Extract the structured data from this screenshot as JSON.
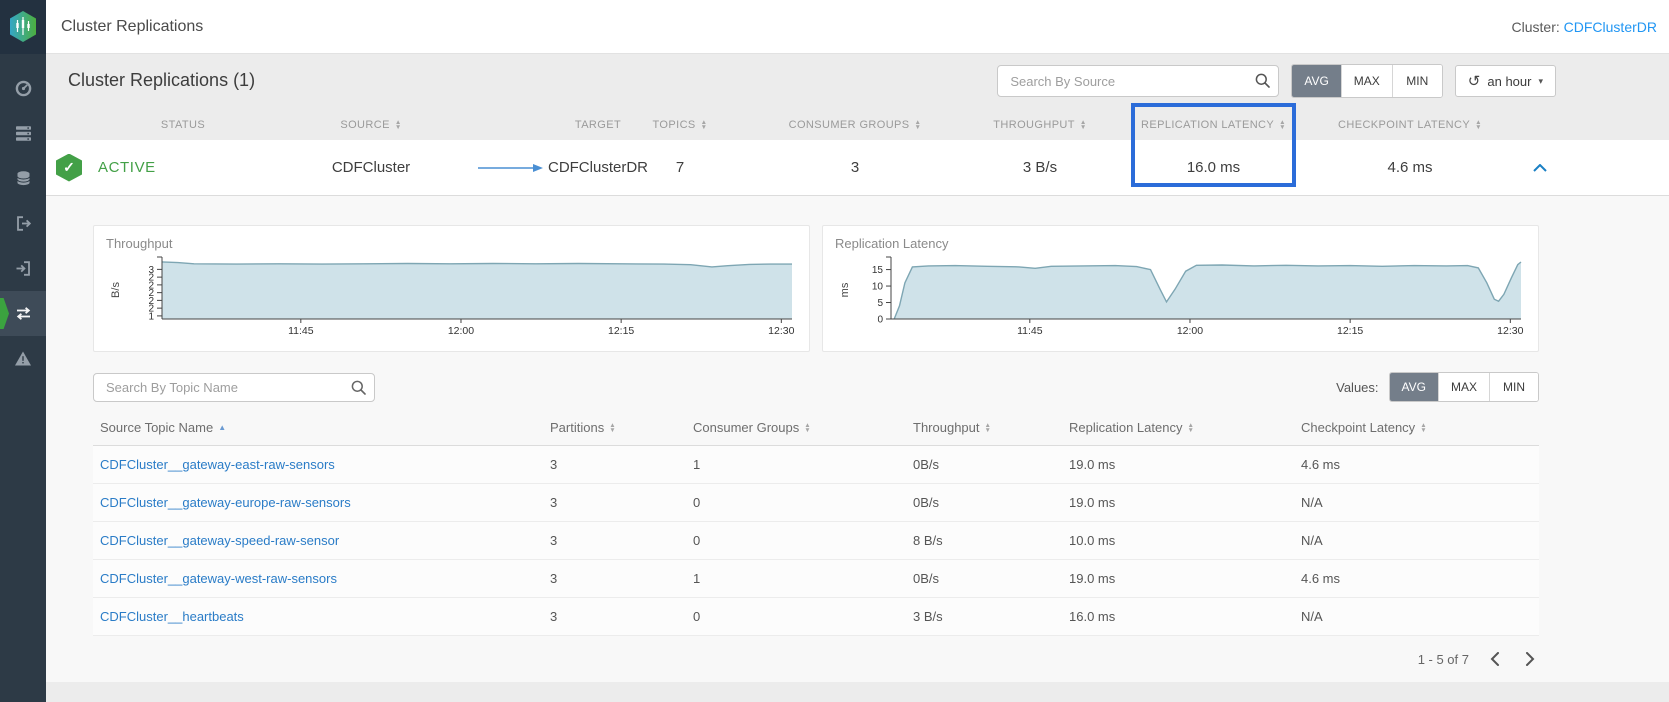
{
  "topbar": {
    "title": "Cluster Replications",
    "cluster_label": "Cluster:",
    "cluster_name": "CDFClusterDR"
  },
  "sidebar": {
    "items": [
      {
        "icon": "gauge-icon",
        "active": false
      },
      {
        "icon": "server-stack-icon",
        "active": false
      },
      {
        "icon": "database-icon",
        "active": false
      },
      {
        "icon": "arrow-out-icon",
        "active": false
      },
      {
        "icon": "arrow-in-icon",
        "active": false
      },
      {
        "icon": "swap-arrows-icon",
        "active": true
      },
      {
        "icon": "warning-triangle-icon",
        "active": false
      }
    ]
  },
  "section": {
    "title": "Cluster Replications (1)",
    "search_placeholder": "Search By Source",
    "agg_buttons": [
      "AVG",
      "MAX",
      "MIN"
    ],
    "agg_selected": "AVG",
    "time_range": "an hour"
  },
  "summary_table": {
    "columns": [
      {
        "label": "STATUS",
        "sortable": false
      },
      {
        "label": "SOURCE",
        "sortable": true
      },
      {
        "label": "TARGET",
        "sortable": false
      },
      {
        "label": "TOPICS",
        "sortable": true
      },
      {
        "label": "CONSUMER GROUPS",
        "sortable": true
      },
      {
        "label": "THROUGHPUT",
        "sortable": true
      },
      {
        "label": "REPLICATION LATENCY",
        "sortable": true,
        "highlighted": true
      },
      {
        "label": "CHECKPOINT LATENCY",
        "sortable": true
      }
    ],
    "row": {
      "status": "ACTIVE",
      "source": "CDFCluster",
      "target": "CDFClusterDR",
      "topics": "7",
      "consumer_groups": "3",
      "throughput": "3 B/s",
      "replication_latency": "16.0 ms",
      "checkpoint_latency": "4.6 ms"
    }
  },
  "chart_data": [
    {
      "type": "area",
      "title": "Throughput",
      "ylabel": "B/s",
      "x_axis": {
        "duration_min": 59,
        "ticks": [
          {
            "t": 13,
            "label": "11:45"
          },
          {
            "t": 28,
            "label": "12:00"
          },
          {
            "t": 43,
            "label": "12:15"
          },
          {
            "t": 58,
            "label": "12:30"
          }
        ]
      },
      "y_axis": {
        "lim": [
          1.15,
          3.02
        ],
        "ticks": [
          {
            "v": 1.25,
            "label": "1"
          },
          {
            "v": 1.5,
            "label": "2"
          },
          {
            "v": 1.75,
            "label": "2"
          },
          {
            "v": 2.0,
            "label": "2"
          },
          {
            "v": 2.25,
            "label": "2"
          },
          {
            "v": 2.5,
            "label": "2"
          },
          {
            "v": 2.75,
            "label": "3"
          }
        ]
      },
      "series": [
        {
          "name": "throughput_bps",
          "points": [
            [
              0,
              2.99
            ],
            [
              1.5,
              2.97
            ],
            [
              3,
              2.93
            ],
            [
              7,
              2.92
            ],
            [
              11,
              2.93
            ],
            [
              15,
              2.92
            ],
            [
              19,
              2.93
            ],
            [
              23,
              2.94
            ],
            [
              27,
              2.93
            ],
            [
              31,
              2.94
            ],
            [
              35,
              2.93
            ],
            [
              39,
              2.94
            ],
            [
              43,
              2.93
            ],
            [
              47,
              2.92
            ],
            [
              49.5,
              2.9
            ],
            [
              51.5,
              2.83
            ],
            [
              53,
              2.87
            ],
            [
              55,
              2.91
            ],
            [
              57,
              2.92
            ],
            [
              59,
              2.92
            ]
          ]
        }
      ]
    },
    {
      "type": "area",
      "title": "Replication Latency",
      "ylabel": "ms",
      "x_axis": {
        "duration_min": 59,
        "ticks": [
          {
            "t": 13,
            "label": "11:45"
          },
          {
            "t": 28,
            "label": "12:00"
          },
          {
            "t": 43,
            "label": "12:15"
          },
          {
            "t": 58,
            "label": "12:30"
          }
        ]
      },
      "y_axis": {
        "lim": [
          0,
          17.6
        ],
        "ticks": [
          {
            "v": 0,
            "label": "0"
          },
          {
            "v": 5,
            "label": "5"
          },
          {
            "v": 10,
            "label": "10"
          },
          {
            "v": 15,
            "label": "15"
          }
        ]
      },
      "series": [
        {
          "name": "replication_latency_ms",
          "points": [
            [
              0.3,
              0
            ],
            [
              0.8,
              4
            ],
            [
              1.3,
              11
            ],
            [
              2,
              15.8
            ],
            [
              3.5,
              16.1
            ],
            [
              6,
              16.2
            ],
            [
              9,
              16
            ],
            [
              12,
              15.8
            ],
            [
              13.5,
              15.4
            ],
            [
              15,
              16
            ],
            [
              18,
              16.1
            ],
            [
              21,
              16.2
            ],
            [
              23,
              15.9
            ],
            [
              24.3,
              15
            ],
            [
              25.2,
              9
            ],
            [
              25.8,
              5.2
            ],
            [
              26.6,
              9
            ],
            [
              27.6,
              14.5
            ],
            [
              28.6,
              16.3
            ],
            [
              31,
              16.4
            ],
            [
              34,
              16.1
            ],
            [
              37,
              16.3
            ],
            [
              40,
              16.1
            ],
            [
              43,
              16.2
            ],
            [
              46,
              16
            ],
            [
              49,
              16.2
            ],
            [
              52,
              16.1
            ],
            [
              54,
              16.2
            ],
            [
              55,
              15.5
            ],
            [
              55.8,
              11
            ],
            [
              56.5,
              6
            ],
            [
              56.9,
              5.4
            ],
            [
              57.4,
              7.5
            ],
            [
              58.1,
              12.5
            ],
            [
              58.7,
              16.5
            ],
            [
              59,
              17.3
            ]
          ]
        }
      ]
    }
  ],
  "topics": {
    "search_placeholder": "Search By Topic Name",
    "values_label": "Values:",
    "agg_buttons": [
      "AVG",
      "MAX",
      "MIN"
    ],
    "agg_selected": "AVG",
    "columns": [
      {
        "label": "Source Topic Name",
        "sort": "asc"
      },
      {
        "label": "Partitions",
        "sortable": true
      },
      {
        "label": "Consumer Groups",
        "sortable": true
      },
      {
        "label": "Throughput",
        "sortable": true
      },
      {
        "label": "Replication Latency",
        "sortable": true
      },
      {
        "label": "Checkpoint Latency",
        "sortable": true
      }
    ],
    "rows": [
      {
        "name": "CDFCluster__gateway-east-raw-sensors",
        "partitions": "3",
        "consumer_groups": "1",
        "throughput": "0B/s",
        "replication_latency": "19.0 ms",
        "checkpoint_latency": "4.6 ms"
      },
      {
        "name": "CDFCluster__gateway-europe-raw-sensors",
        "partitions": "3",
        "consumer_groups": "0",
        "throughput": "0B/s",
        "replication_latency": "19.0 ms",
        "checkpoint_latency": "N/A"
      },
      {
        "name": "CDFCluster__gateway-speed-raw-sensor",
        "partitions": "3",
        "consumer_groups": "0",
        "throughput": "8 B/s",
        "replication_latency": "10.0 ms",
        "checkpoint_latency": "N/A"
      },
      {
        "name": "CDFCluster__gateway-west-raw-sensors",
        "partitions": "3",
        "consumer_groups": "1",
        "throughput": "0B/s",
        "replication_latency": "19.0 ms",
        "checkpoint_latency": "4.6 ms"
      },
      {
        "name": "CDFCluster__heartbeats",
        "partitions": "3",
        "consumer_groups": "0",
        "throughput": "3 B/s",
        "replication_latency": "16.0 ms",
        "checkpoint_latency": "N/A"
      }
    ]
  },
  "pagination": {
    "range_text": "1 - 5 of 7"
  },
  "colors": {
    "accent_blue": "#2196f3",
    "active_green": "#43a047",
    "highlight_border": "#2b6cd9",
    "selected_button_bg": "#747e8a",
    "sidebar_bg": "#2d3a46",
    "chart_fill": "#cfe2e9",
    "chart_stroke": "#7ea6b3"
  }
}
